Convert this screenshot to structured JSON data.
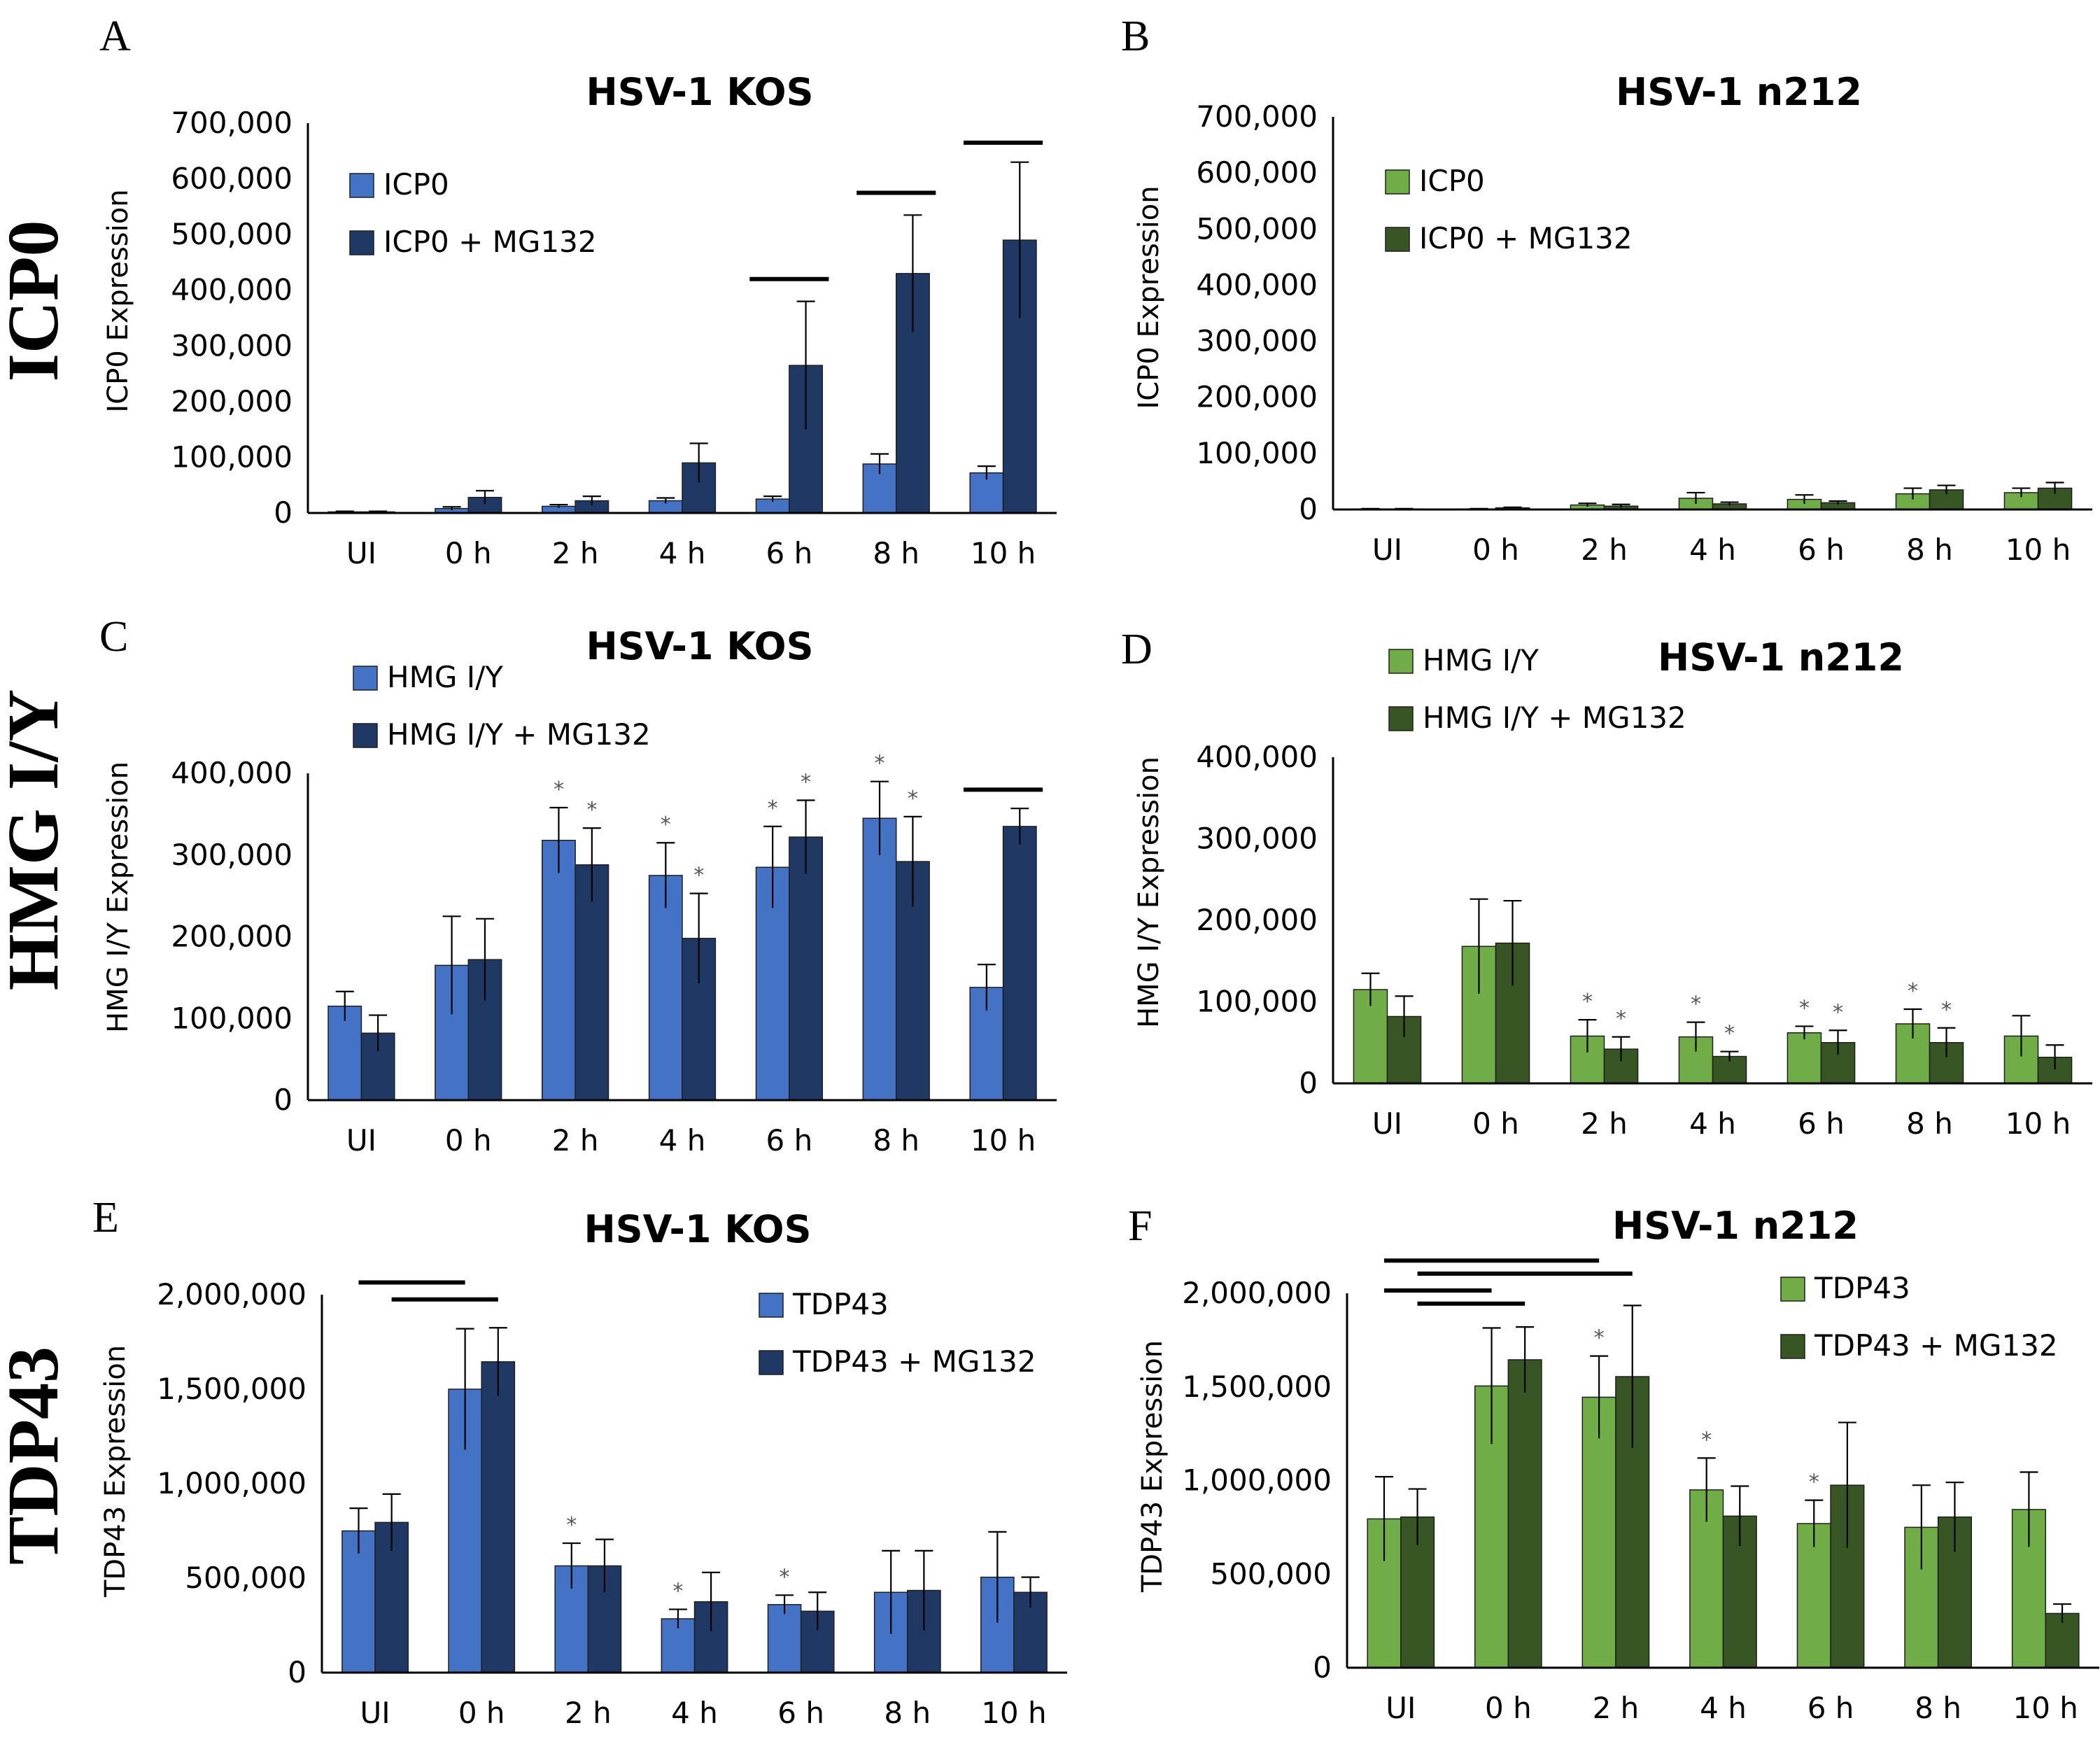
{
  "colors": {
    "kos_light": "#4472C4",
    "kos_dark": "#203864",
    "n212_light": "#70AD47",
    "n212_dark": "#375623"
  },
  "row_labels": [
    "ICP0",
    "HMG I/Y",
    "TDP43"
  ],
  "chart_data": [
    {
      "panel": "A",
      "type": "bar",
      "title": "HSV-1 KOS",
      "ylabel": "ICP0 Expression",
      "categories": [
        "UI",
        "0 h",
        "2 h",
        "4 h",
        "6 h",
        "8 h",
        "10 h"
      ],
      "ylim": [
        0,
        700000
      ],
      "yticks": [
        0,
        100000,
        200000,
        300000,
        400000,
        500000,
        600000,
        700000
      ],
      "ytick_labels": [
        "0",
        "100,000",
        "200,000",
        "300,000",
        "400,000",
        "500,000",
        "600,000",
        "700,000"
      ],
      "palette": [
        "kos_light",
        "kos_dark"
      ],
      "series": [
        {
          "name": "ICP0",
          "values": [
            2000,
            8000,
            12000,
            22000,
            25000,
            88000,
            72000
          ],
          "errors": [
            1000,
            3000,
            3000,
            5000,
            5000,
            18000,
            12000
          ]
        },
        {
          "name": "ICP0 + MG132",
          "values": [
            2000,
            28000,
            22000,
            90000,
            265000,
            430000,
            490000
          ],
          "errors": [
            1000,
            12000,
            8000,
            35000,
            115000,
            105000,
            140000
          ]
        }
      ],
      "stars": [
        [],
        []
      ],
      "sig_bars": [
        {
          "cat": 4,
          "y": 420000
        },
        {
          "cat": 5,
          "y": 575000
        },
        {
          "cat": 6,
          "y": 665000
        }
      ],
      "spans": [],
      "legend": "upper-left"
    },
    {
      "panel": "B",
      "type": "bar",
      "title": "HSV-1 n212",
      "ylabel": "ICP0 Expression",
      "categories": [
        "UI",
        "0 h",
        "2 h",
        "4 h",
        "6 h",
        "8 h",
        "10 h"
      ],
      "ylim": [
        0,
        700000
      ],
      "yticks": [
        0,
        100000,
        200000,
        300000,
        400000,
        500000,
        600000,
        700000
      ],
      "ytick_labels": [
        "0",
        "100,000",
        "200,000",
        "300,000",
        "400,000",
        "500,000",
        "600,000",
        "700,000"
      ],
      "palette": [
        "n212_light",
        "n212_dark"
      ],
      "series": [
        {
          "name": "ICP0",
          "values": [
            1000,
            1000,
            8000,
            20000,
            18000,
            28000,
            30000
          ],
          "errors": [
            500,
            500,
            3000,
            10000,
            8000,
            10000,
            8000
          ]
        },
        {
          "name": "ICP0 + MG132",
          "values": [
            1000,
            3000,
            6000,
            10000,
            12000,
            35000,
            38000
          ],
          "errors": [
            500,
            1000,
            3000,
            3000,
            3000,
            8000,
            10000
          ]
        }
      ],
      "stars": [
        [],
        []
      ],
      "sig_bars": [],
      "spans": [],
      "legend": "upper-left"
    },
    {
      "panel": "C",
      "type": "bar",
      "title": "HSV-1 KOS",
      "ylabel": "HMG I/Y Expression",
      "categories": [
        "UI",
        "0 h",
        "2 h",
        "4 h",
        "6 h",
        "8 h",
        "10 h"
      ],
      "ylim": [
        0,
        400000
      ],
      "yticks": [
        0,
        100000,
        200000,
        300000,
        400000
      ],
      "ytick_labels": [
        "0",
        "100,000",
        "200,000",
        "300,000",
        "400,000"
      ],
      "palette": [
        "kos_light",
        "kos_dark"
      ],
      "series": [
        {
          "name": "HMG I/Y",
          "values": [
            115000,
            165000,
            318000,
            275000,
            285000,
            345000,
            138000
          ],
          "errors": [
            18000,
            60000,
            40000,
            40000,
            50000,
            45000,
            28000
          ]
        },
        {
          "name": "HMG I/Y + MG132",
          "values": [
            82000,
            172000,
            288000,
            198000,
            322000,
            292000,
            335000
          ],
          "errors": [
            22000,
            50000,
            45000,
            55000,
            45000,
            55000,
            22000
          ]
        }
      ],
      "stars": [
        [
          2,
          3,
          4,
          5
        ],
        [
          2,
          3,
          4,
          5
        ]
      ],
      "sig_bars": [
        {
          "cat": 6,
          "y": 380000
        }
      ],
      "spans": [],
      "legend": "upper-left"
    },
    {
      "panel": "D",
      "type": "bar",
      "title": "HSV-1 n212",
      "ylabel": "HMG I/Y Expression",
      "categories": [
        "UI",
        "0 h",
        "2 h",
        "4 h",
        "6 h",
        "8 h",
        "10 h"
      ],
      "ylim": [
        0,
        400000
      ],
      "yticks": [
        0,
        100000,
        200000,
        300000,
        400000
      ],
      "ytick_labels": [
        "0",
        "100,000",
        "200,000",
        "300,000",
        "400,000"
      ],
      "palette": [
        "n212_light",
        "n212_dark"
      ],
      "series": [
        {
          "name": "HMG I/Y",
          "values": [
            115000,
            168000,
            58000,
            57000,
            62000,
            73000,
            58000
          ],
          "errors": [
            20000,
            58000,
            20000,
            18000,
            8000,
            18000,
            25000
          ]
        },
        {
          "name": "HMG I/Y + MG132",
          "values": [
            82000,
            172000,
            42000,
            33000,
            50000,
            50000,
            32000
          ],
          "errors": [
            25000,
            52000,
            15000,
            6000,
            15000,
            18000,
            15000
          ]
        }
      ],
      "stars": [
        [
          2,
          3,
          4,
          5
        ],
        [
          2,
          3,
          4,
          5
        ]
      ],
      "sig_bars": [],
      "spans": [],
      "legend": "upper-left"
    },
    {
      "panel": "E",
      "type": "bar",
      "title": "HSV-1 KOS",
      "ylabel": "TDP43 Expression",
      "categories": [
        "UI",
        "0 h",
        "2 h",
        "4 h",
        "6 h",
        "8 h",
        "10 h"
      ],
      "ylim": [
        0,
        2000000
      ],
      "yticks": [
        0,
        500000,
        1000000,
        1500000,
        2000000
      ],
      "ytick_labels": [
        "0",
        "500,000",
        "1,000,000",
        "1,500,000",
        "2,000,000"
      ],
      "palette": [
        "kos_light",
        "kos_dark"
      ],
      "series": [
        {
          "name": "TDP43",
          "values": [
            750000,
            1500000,
            565000,
            285000,
            360000,
            425000,
            505000
          ],
          "errors": [
            120000,
            320000,
            120000,
            50000,
            50000,
            220000,
            240000
          ]
        },
        {
          "name": "TDP43 + MG132",
          "values": [
            795000,
            1645000,
            565000,
            375000,
            325000,
            435000,
            425000
          ],
          "errors": [
            150000,
            180000,
            140000,
            155000,
            100000,
            210000,
            80000
          ]
        }
      ],
      "stars": [
        [
          2,
          3,
          4
        ],
        []
      ],
      "sig_bars": [],
      "spans": [
        {
          "from": [
            0,
            0
          ],
          "to": [
            1,
            0
          ],
          "y": 2065000
        },
        {
          "from": [
            0,
            1
          ],
          "to": [
            1,
            1
          ],
          "y": 1975000
        }
      ],
      "legend": "upper-right"
    },
    {
      "panel": "F",
      "type": "bar",
      "title": "HSV-1 n212",
      "ylabel": "TDP43 Expression",
      "categories": [
        "UI",
        "0 h",
        "2 h",
        "4 h",
        "6 h",
        "8 h",
        "10 h"
      ],
      "ylim": [
        0,
        2000000
      ],
      "yticks": [
        0,
        500000,
        1000000,
        1500000,
        2000000
      ],
      "ytick_labels": [
        "0",
        "500,000",
        "1,000,000",
        "1,500,000",
        "2,000,000"
      ],
      "palette": [
        "n212_light",
        "n212_dark"
      ],
      "series": [
        {
          "name": "TDP43",
          "values": [
            795000,
            1505000,
            1445000,
            950000,
            770000,
            750000,
            845000
          ],
          "errors": [
            225000,
            310000,
            220000,
            170000,
            125000,
            225000,
            200000
          ]
        },
        {
          "name": "TDP43 + MG132",
          "values": [
            805000,
            1645000,
            1555000,
            810000,
            975000,
            805000,
            290000
          ],
          "errors": [
            150000,
            175000,
            380000,
            160000,
            335000,
            185000,
            50000
          ]
        }
      ],
      "stars": [
        [
          2,
          3,
          4
        ],
        []
      ],
      "sig_bars": [],
      "spans": [
        {
          "from": [
            0,
            0
          ],
          "to": [
            2,
            0
          ],
          "y": 2175000
        },
        {
          "from": [
            0,
            1
          ],
          "to": [
            2,
            1
          ],
          "y": 2105000
        },
        {
          "from": [
            0,
            0
          ],
          "to": [
            1,
            0
          ],
          "y": 2015000
        },
        {
          "from": [
            0,
            1
          ],
          "to": [
            1,
            1
          ],
          "y": 1945000
        }
      ],
      "legend": "upper-right"
    }
  ]
}
